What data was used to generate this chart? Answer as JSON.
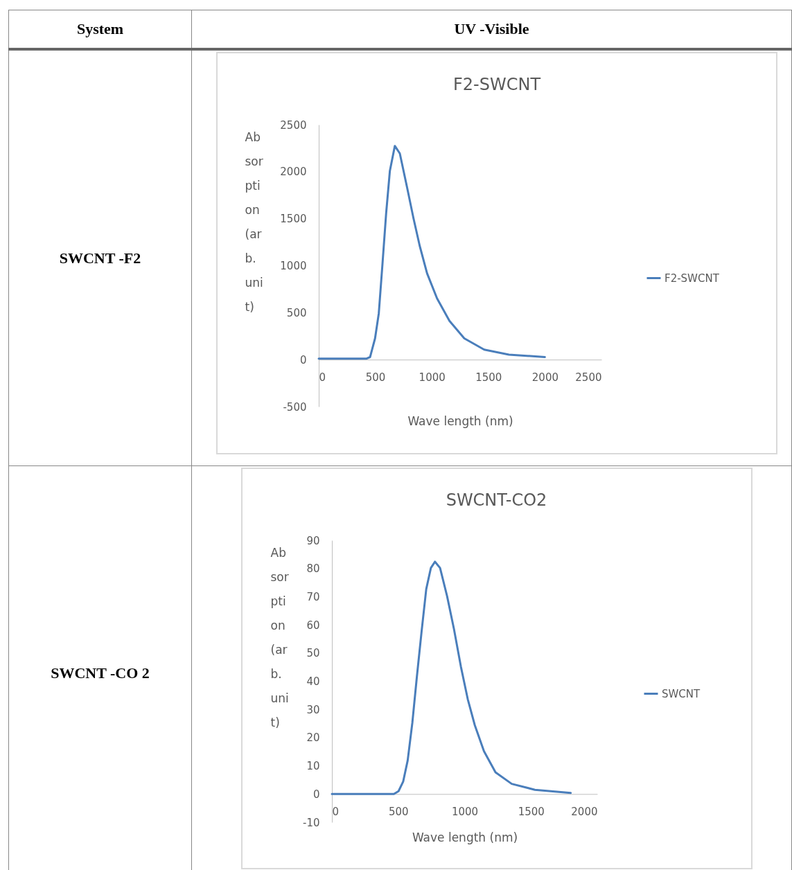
{
  "chart_data": [
    {
      "type": "line",
      "title": "F2-SWCNT",
      "xlabel": "Wave length (nm)",
      "ylabel": "Absorption (arb. unit)",
      "annotations": [
        "System",
        "UV -Visible",
        "SWCNT   -F2"
      ],
      "x": [
        0,
        420,
        454,
        498,
        531,
        564,
        596,
        629,
        673,
        717,
        783,
        838,
        893,
        958,
        1046,
        1156,
        1287,
        1463,
        1682,
        2000
      ],
      "series": [
        {
          "name": "F2-SWCNT",
          "color": "#4a7ebb",
          "values": [
            10,
            10,
            27,
            226,
            492,
            1024,
            1556,
            2008,
            2274,
            2194,
            1822,
            1503,
            1210,
            918,
            652,
            412,
            226,
            106,
            53,
            27
          ]
        }
      ],
      "xlim": [
        0,
        2500
      ],
      "xticks": [
        0,
        500,
        1000,
        1500,
        2000,
        2500
      ],
      "ylim": [
        -500,
        2500
      ],
      "yticks": [
        -500,
        0,
        500,
        1000,
        1500,
        2000,
        2500
      ],
      "grid": false,
      "legend": "right",
      "marker": "none",
      "line_style": "solid"
    },
    {
      "type": "line",
      "title": "SWCNT-CO2",
      "xlabel": "Wave length (nm)",
      "ylabel": "Absorption (arb. unit)",
      "annotations": [
        "SWCNT   -CO 2"
      ],
      "x": [
        0,
        467,
        502,
        537,
        571,
        606,
        641,
        676,
        711,
        746,
        777,
        815,
        868,
        920,
        972,
        1024,
        1077,
        1146,
        1233,
        1355,
        1530,
        1800
      ],
      "series": [
        {
          "name": "SWCNT",
          "color": "#4a7ebb",
          "values": [
            0,
            0,
            1,
            4.4,
            11.9,
            25.2,
            41.9,
            57.7,
            72.7,
            80.2,
            82.4,
            80.2,
            70.2,
            58.5,
            45.2,
            33.6,
            24.4,
            15.2,
            7.7,
            3.6,
            1.5,
            0.4
          ]
        }
      ],
      "xlim": [
        0,
        2000
      ],
      "xticks": [
        0,
        500,
        1000,
        1500,
        2000
      ],
      "ylim": [
        -10,
        90
      ],
      "yticks": [
        -10,
        0,
        10,
        20,
        30,
        40,
        50,
        60,
        70,
        80,
        90
      ],
      "grid": false,
      "legend": "right",
      "marker": "none",
      "line_style": "solid"
    }
  ]
}
